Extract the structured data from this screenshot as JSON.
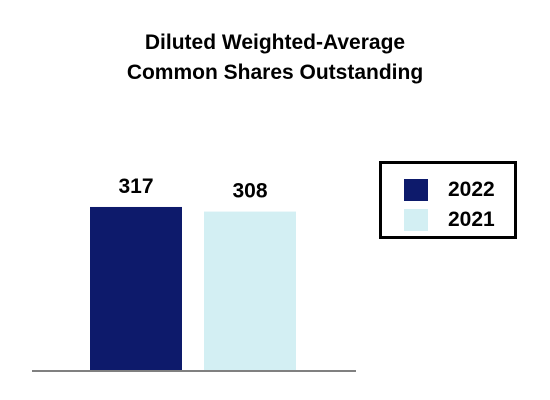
{
  "chart_data": {
    "type": "bar",
    "title_lines": [
      "Diluted Weighted-Average",
      "Common Shares Outstanding"
    ],
    "categories": [
      "2022",
      "2021"
    ],
    "values": [
      317,
      308
    ],
    "data_labels": [
      "317",
      "308"
    ],
    "colors": [
      "#0d1a6b",
      "#d3eff3"
    ],
    "ylim": [
      0,
      350
    ],
    "grid": false,
    "legend_placement": "right",
    "legend": [
      {
        "label": "2022",
        "color": "#0d1a6b"
      },
      {
        "label": "2021",
        "color": "#d3eff3"
      }
    ]
  }
}
